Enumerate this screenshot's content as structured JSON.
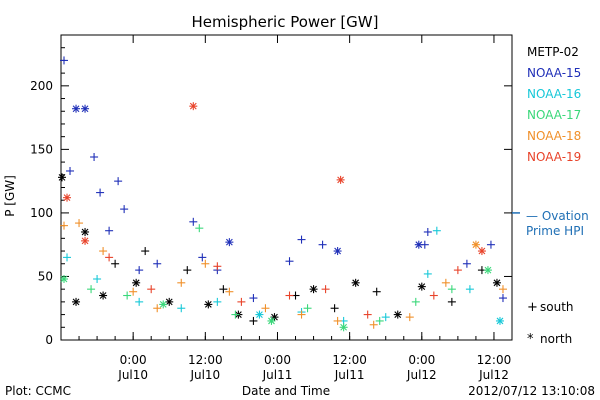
{
  "chart_data": {
    "type": "scatter",
    "title": "Hemispheric Power [GW]",
    "xlabel": "Date and Time",
    "ylabel": "P [GW]",
    "xlim": [
      "2012-07-09T12:00",
      "2012-07-12T15:00"
    ],
    "ylim": [
      0,
      240
    ],
    "y_ticks": [
      0,
      50,
      100,
      150,
      200
    ],
    "x_ticks": [
      {
        "t": "2012-07-10T00:00",
        "time": "0:00",
        "date": "Jul10"
      },
      {
        "t": "2012-07-10T12:00",
        "time": "12:00",
        "date": "Jul10"
      },
      {
        "t": "2012-07-11T00:00",
        "time": "0:00",
        "date": "Jul11"
      },
      {
        "t": "2012-07-11T12:00",
        "time": "12:00",
        "date": "Jul11"
      },
      {
        "t": "2012-07-12T00:00",
        "time": "0:00",
        "date": "Jul12"
      },
      {
        "t": "2012-07-12T12:00",
        "time": "12:00",
        "date": "Jul12"
      }
    ],
    "legend_position": "right",
    "series": [
      {
        "name": "METP-02",
        "color": "#000000",
        "points": [
          {
            "x": "2012-07-09T12:10",
            "y": 128,
            "h": "north"
          },
          {
            "x": "2012-07-09T14:30",
            "y": 30,
            "h": "north"
          },
          {
            "x": "2012-07-09T16:00",
            "y": 85,
            "h": "north"
          },
          {
            "x": "2012-07-09T19:00",
            "y": 35,
            "h": "north"
          },
          {
            "x": "2012-07-09T21:00",
            "y": 60,
            "h": "south"
          },
          {
            "x": "2012-07-10T00:30",
            "y": 45,
            "h": "north"
          },
          {
            "x": "2012-07-10T02:00",
            "y": 70,
            "h": "south"
          },
          {
            "x": "2012-07-10T06:00",
            "y": 30,
            "h": "north"
          },
          {
            "x": "2012-07-10T09:00",
            "y": 55,
            "h": "south"
          },
          {
            "x": "2012-07-10T12:30",
            "y": 28,
            "h": "north"
          },
          {
            "x": "2012-07-10T15:00",
            "y": 40,
            "h": "south"
          },
          {
            "x": "2012-07-10T17:30",
            "y": 20,
            "h": "north"
          },
          {
            "x": "2012-07-10T20:00",
            "y": 15,
            "h": "south"
          },
          {
            "x": "2012-07-10T23:30",
            "y": 18,
            "h": "north"
          },
          {
            "x": "2012-07-11T03:00",
            "y": 35,
            "h": "south"
          },
          {
            "x": "2012-07-11T06:00",
            "y": 40,
            "h": "north"
          },
          {
            "x": "2012-07-11T09:30",
            "y": 25,
            "h": "south"
          },
          {
            "x": "2012-07-11T13:00",
            "y": 45,
            "h": "north"
          },
          {
            "x": "2012-07-11T16:30",
            "y": 38,
            "h": "south"
          },
          {
            "x": "2012-07-11T20:00",
            "y": 20,
            "h": "north"
          },
          {
            "x": "2012-07-12T00:00",
            "y": 42,
            "h": "north"
          },
          {
            "x": "2012-07-12T05:00",
            "y": 30,
            "h": "south"
          },
          {
            "x": "2012-07-12T10:00",
            "y": 55,
            "h": "south"
          },
          {
            "x": "2012-07-12T12:30",
            "y": 45,
            "h": "north"
          }
        ]
      },
      {
        "name": "NOAA-15",
        "color": "#1f2fb8",
        "points": [
          {
            "x": "2012-07-09T12:30",
            "y": 220,
            "h": "south"
          },
          {
            "x": "2012-07-09T13:30",
            "y": 133,
            "h": "south"
          },
          {
            "x": "2012-07-09T14:30",
            "y": 182,
            "h": "north"
          },
          {
            "x": "2012-07-09T16:00",
            "y": 182,
            "h": "north"
          },
          {
            "x": "2012-07-09T17:30",
            "y": 144,
            "h": "south"
          },
          {
            "x": "2012-07-09T18:30",
            "y": 116,
            "h": "south"
          },
          {
            "x": "2012-07-09T20:00",
            "y": 86,
            "h": "south"
          },
          {
            "x": "2012-07-09T21:30",
            "y": 125,
            "h": "south"
          },
          {
            "x": "2012-07-09T22:30",
            "y": 103,
            "h": "south"
          },
          {
            "x": "2012-07-10T01:00",
            "y": 55,
            "h": "south"
          },
          {
            "x": "2012-07-10T04:00",
            "y": 60,
            "h": "south"
          },
          {
            "x": "2012-07-10T10:00",
            "y": 93,
            "h": "south"
          },
          {
            "x": "2012-07-10T11:30",
            "y": 65,
            "h": "south"
          },
          {
            "x": "2012-07-10T14:00",
            "y": 55,
            "h": "south"
          },
          {
            "x": "2012-07-10T16:00",
            "y": 77,
            "h": "north"
          },
          {
            "x": "2012-07-10T20:00",
            "y": 33,
            "h": "south"
          },
          {
            "x": "2012-07-11T02:00",
            "y": 62,
            "h": "south"
          },
          {
            "x": "2012-07-11T04:00",
            "y": 79,
            "h": "south"
          },
          {
            "x": "2012-07-11T07:30",
            "y": 75,
            "h": "south"
          },
          {
            "x": "2012-07-11T10:00",
            "y": 70,
            "h": "north"
          },
          {
            "x": "2012-07-11T23:30",
            "y": 75,
            "h": "north"
          },
          {
            "x": "2012-07-12T00:30",
            "y": 75,
            "h": "south"
          },
          {
            "x": "2012-07-12T01:00",
            "y": 85,
            "h": "south"
          },
          {
            "x": "2012-07-12T07:30",
            "y": 60,
            "h": "south"
          },
          {
            "x": "2012-07-12T11:30",
            "y": 75,
            "h": "south"
          },
          {
            "x": "2012-07-12T13:30",
            "y": 33,
            "h": "south"
          }
        ]
      },
      {
        "name": "NOAA-16",
        "color": "#17c8d8",
        "points": [
          {
            "x": "2012-07-09T13:00",
            "y": 65,
            "h": "south"
          },
          {
            "x": "2012-07-09T18:00",
            "y": 48,
            "h": "south"
          },
          {
            "x": "2012-07-10T01:00",
            "y": 30,
            "h": "south"
          },
          {
            "x": "2012-07-10T08:00",
            "y": 25,
            "h": "south"
          },
          {
            "x": "2012-07-10T14:00",
            "y": 30,
            "h": "south"
          },
          {
            "x": "2012-07-10T21:00",
            "y": 20,
            "h": "north"
          },
          {
            "x": "2012-07-11T04:00",
            "y": 22,
            "h": "south"
          },
          {
            "x": "2012-07-11T11:00",
            "y": 15,
            "h": "south"
          },
          {
            "x": "2012-07-11T18:00",
            "y": 18,
            "h": "south"
          },
          {
            "x": "2012-07-12T01:00",
            "y": 52,
            "h": "south"
          },
          {
            "x": "2012-07-12T02:30",
            "y": 86,
            "h": "south"
          },
          {
            "x": "2012-07-12T08:00",
            "y": 40,
            "h": "south"
          },
          {
            "x": "2012-07-12T13:00",
            "y": 15,
            "h": "north"
          }
        ]
      },
      {
        "name": "NOAA-17",
        "color": "#3ad87a",
        "points": [
          {
            "x": "2012-07-09T12:30",
            "y": 48,
            "h": "north"
          },
          {
            "x": "2012-07-09T17:00",
            "y": 40,
            "h": "south"
          },
          {
            "x": "2012-07-09T23:00",
            "y": 35,
            "h": "south"
          },
          {
            "x": "2012-07-10T05:00",
            "y": 28,
            "h": "north"
          },
          {
            "x": "2012-07-10T11:00",
            "y": 88,
            "h": "south"
          },
          {
            "x": "2012-07-10T17:00",
            "y": 20,
            "h": "south"
          },
          {
            "x": "2012-07-10T23:00",
            "y": 15,
            "h": "north"
          },
          {
            "x": "2012-07-11T05:00",
            "y": 25,
            "h": "south"
          },
          {
            "x": "2012-07-11T11:00",
            "y": 10,
            "h": "north"
          },
          {
            "x": "2012-07-11T17:00",
            "y": 15,
            "h": "south"
          },
          {
            "x": "2012-07-11T23:00",
            "y": 30,
            "h": "south"
          },
          {
            "x": "2012-07-12T05:00",
            "y": 40,
            "h": "south"
          },
          {
            "x": "2012-07-12T11:00",
            "y": 55,
            "h": "north"
          }
        ]
      },
      {
        "name": "NOAA-18",
        "color": "#f0902a",
        "points": [
          {
            "x": "2012-07-09T12:30",
            "y": 90,
            "h": "south"
          },
          {
            "x": "2012-07-09T15:00",
            "y": 92,
            "h": "south"
          },
          {
            "x": "2012-07-09T19:00",
            "y": 70,
            "h": "south"
          },
          {
            "x": "2012-07-10T00:00",
            "y": 38,
            "h": "south"
          },
          {
            "x": "2012-07-10T04:00",
            "y": 25,
            "h": "south"
          },
          {
            "x": "2012-07-10T08:00",
            "y": 45,
            "h": "south"
          },
          {
            "x": "2012-07-10T12:00",
            "y": 60,
            "h": "south"
          },
          {
            "x": "2012-07-10T16:00",
            "y": 38,
            "h": "south"
          },
          {
            "x": "2012-07-10T22:00",
            "y": 25,
            "h": "south"
          },
          {
            "x": "2012-07-11T04:00",
            "y": 20,
            "h": "south"
          },
          {
            "x": "2012-07-11T10:00",
            "y": 15,
            "h": "south"
          },
          {
            "x": "2012-07-11T16:00",
            "y": 12,
            "h": "south"
          },
          {
            "x": "2012-07-11T22:00",
            "y": 18,
            "h": "south"
          },
          {
            "x": "2012-07-12T04:00",
            "y": 45,
            "h": "south"
          },
          {
            "x": "2012-07-12T09:00",
            "y": 75,
            "h": "north"
          },
          {
            "x": "2012-07-12T13:30",
            "y": 40,
            "h": "south"
          }
        ]
      },
      {
        "name": "NOAA-19",
        "color": "#e8432a",
        "points": [
          {
            "x": "2012-07-09T13:00",
            "y": 112,
            "h": "north"
          },
          {
            "x": "2012-07-09T16:00",
            "y": 78,
            "h": "north"
          },
          {
            "x": "2012-07-09T20:00",
            "y": 65,
            "h": "south"
          },
          {
            "x": "2012-07-10T03:00",
            "y": 40,
            "h": "south"
          },
          {
            "x": "2012-07-10T10:00",
            "y": 184,
            "h": "north"
          },
          {
            "x": "2012-07-10T14:00",
            "y": 58,
            "h": "south"
          },
          {
            "x": "2012-07-10T18:00",
            "y": 30,
            "h": "south"
          },
          {
            "x": "2012-07-11T02:00",
            "y": 35,
            "h": "south"
          },
          {
            "x": "2012-07-11T08:00",
            "y": 40,
            "h": "south"
          },
          {
            "x": "2012-07-11T10:30",
            "y": 126,
            "h": "north"
          },
          {
            "x": "2012-07-11T15:00",
            "y": 20,
            "h": "south"
          },
          {
            "x": "2012-07-12T02:00",
            "y": 35,
            "h": "south"
          },
          {
            "x": "2012-07-12T06:00",
            "y": 55,
            "h": "south"
          },
          {
            "x": "2012-07-12T10:00",
            "y": 70,
            "h": "north"
          }
        ]
      }
    ],
    "reference_line": {
      "value": 100,
      "label_line1": "— Ovation",
      "label_line2": "Prime HPI",
      "color": "#1f6fb5"
    },
    "markers_legend": [
      {
        "symbol": "+",
        "label": "south"
      },
      {
        "symbol": "*",
        "label": "north"
      }
    ]
  },
  "footer": {
    "plot_label": "Plot: CCMC",
    "timestamp": "2012/07/12 13:10:08"
  }
}
